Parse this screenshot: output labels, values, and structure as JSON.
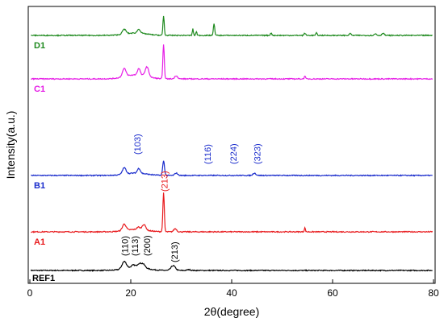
{
  "chart_data": {
    "type": "line",
    "xlabel": "2θ(degree)",
    "ylabel": "Intensity(a.u.)",
    "xlim": [
      0,
      80
    ],
    "xticks": [
      "0",
      "20",
      "40",
      "60",
      "80"
    ],
    "grid": false,
    "series": [
      {
        "name": "REF1",
        "color": "#000000",
        "offset": 0,
        "peaks": [
          [
            18.7,
            9,
            0.6
          ],
          [
            20.5,
            3,
            0.5
          ],
          [
            21.6,
            4,
            0.5
          ],
          [
            22.4,
            5,
            0.6
          ],
          [
            28.4,
            6,
            0.6
          ],
          [
            31.5,
            1,
            0.5
          ]
        ],
        "baseline": 2,
        "hump": [
          21,
          4,
          3
        ]
      },
      {
        "name": "A1",
        "color": "#e8191c",
        "offset": 48,
        "peaks": [
          [
            18.7,
            8,
            0.5
          ],
          [
            21.5,
            3,
            0.4
          ],
          [
            22.6,
            7,
            0.5
          ],
          [
            26.5,
            48,
            0.2
          ],
          [
            28.8,
            4,
            0.4
          ],
          [
            54.5,
            5,
            0.15
          ]
        ],
        "baseline": 2,
        "hump": [
          21,
          3,
          3
        ]
      },
      {
        "name": "B1",
        "color": "#1a2ccc",
        "offset": 118,
        "peaks": [
          [
            18.7,
            8,
            0.5
          ],
          [
            21.6,
            6,
            0.4
          ],
          [
            26.5,
            18,
            0.25
          ],
          [
            29,
            3,
            0.4
          ],
          [
            44.5,
            3,
            0.4
          ]
        ],
        "baseline": 2,
        "hump": [
          21,
          3,
          3
        ]
      },
      {
        "name": "C1",
        "color": "#e61ee6",
        "offset": 238,
        "peaks": [
          [
            18.7,
            10,
            0.5
          ],
          [
            21.6,
            8,
            0.4
          ],
          [
            23.2,
            12,
            0.5
          ],
          [
            26.5,
            42,
            0.2
          ],
          [
            29,
            4,
            0.4
          ],
          [
            54.5,
            4,
            0.15
          ]
        ],
        "baseline": 2,
        "hump": [
          21,
          5,
          3
        ]
      },
      {
        "name": "D1",
        "color": "#1f8a1f",
        "offset": 292,
        "peaks": [
          [
            18.7,
            6,
            0.5
          ],
          [
            21.6,
            5,
            0.4
          ],
          [
            26.5,
            24,
            0.18
          ],
          [
            32.3,
            8,
            0.15
          ],
          [
            33,
            5,
            0.15
          ],
          [
            36.5,
            14,
            0.2
          ],
          [
            47.8,
            3,
            0.2
          ],
          [
            54.5,
            3,
            0.2
          ],
          [
            56.8,
            3,
            0.2
          ],
          [
            63.5,
            3,
            0.2
          ],
          [
            68.5,
            2,
            0.3
          ],
          [
            70,
            3,
            0.3
          ]
        ],
        "baseline": 2,
        "hump": [
          21,
          3,
          3
        ]
      }
    ],
    "annotations": [
      {
        "text": "(110)",
        "x": 18.8,
        "color": "#000000",
        "series": "REF1"
      },
      {
        "text": "(113)",
        "x": 20.8,
        "color": "#000000",
        "series": "REF1"
      },
      {
        "text": "(200)",
        "x": 23.2,
        "color": "#000000",
        "series": "REF1"
      },
      {
        "text": "(213)",
        "x": 28.6,
        "color": "#000000",
        "series": "REF1"
      },
      {
        "text": "(213)",
        "x": 26.6,
        "color": "#e8191c",
        "series": "A1"
      },
      {
        "text": "(103)",
        "x": 21.3,
        "color": "#1a2ccc",
        "series": "B1"
      },
      {
        "text": "(116)",
        "x": 35.2,
        "color": "#1a2ccc",
        "series": "B1"
      },
      {
        "text": "(224)",
        "x": 40.3,
        "color": "#1a2ccc",
        "series": "B1"
      },
      {
        "text": "(323)",
        "x": 45.0,
        "color": "#1a2ccc",
        "series": "B1"
      }
    ]
  }
}
